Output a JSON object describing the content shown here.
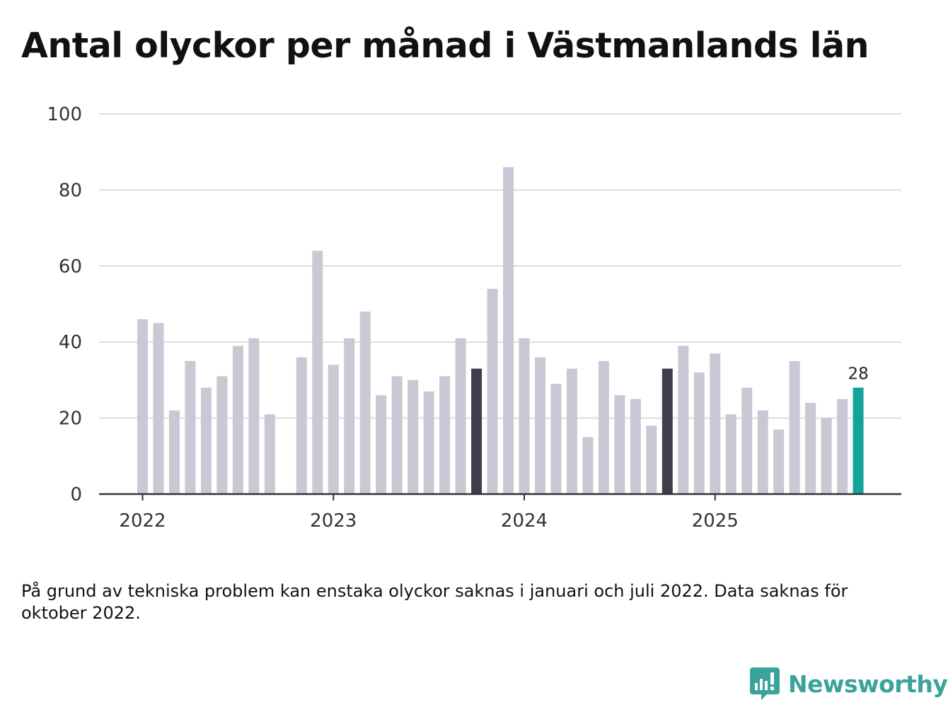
{
  "title": "Antal olyckor per månad i Västmanlands län",
  "footnote": "På grund av tekniska problem kan enstaka olyckor saknas i januari och juli 2022. Data saknas för oktober 2022.",
  "brand": {
    "name": "Newsworthy",
    "icon": "newsworthy-logo-icon"
  },
  "colors": {
    "default": "#c9c8d4",
    "highlight": "#3f3e4d",
    "latest": "#14a39a",
    "grid": "#dddddd",
    "axis": "#333333"
  },
  "chart_data": {
    "type": "bar",
    "title": "Antal olyckor per månad i Västmanlands län",
    "xlabel": "",
    "ylabel": "",
    "ylim": [
      0,
      100
    ],
    "yticks": [
      0,
      20,
      40,
      60,
      80,
      100
    ],
    "x_tick_labels": [
      {
        "label": "2022",
        "index": 0
      },
      {
        "label": "2023",
        "index": 12
      },
      {
        "label": "2024",
        "index": 24
      },
      {
        "label": "2025",
        "index": 36
      }
    ],
    "categories": [
      "2022-01",
      "2022-02",
      "2022-03",
      "2022-04",
      "2022-05",
      "2022-06",
      "2022-07",
      "2022-08",
      "2022-09",
      "2022-10",
      "2022-11",
      "2022-12",
      "2023-01",
      "2023-02",
      "2023-03",
      "2023-04",
      "2023-05",
      "2023-06",
      "2023-07",
      "2023-08",
      "2023-09",
      "2023-10",
      "2023-11",
      "2023-12",
      "2024-01",
      "2024-02",
      "2024-03",
      "2024-04",
      "2024-05",
      "2024-06",
      "2024-07",
      "2024-08",
      "2024-09",
      "2024-10",
      "2024-11",
      "2024-12",
      "2025-01",
      "2025-02",
      "2025-03",
      "2025-04",
      "2025-05",
      "2025-06",
      "2025-07",
      "2025-08",
      "2025-09",
      "2025-10"
    ],
    "values": [
      46,
      45,
      22,
      35,
      28,
      31,
      39,
      41,
      21,
      null,
      36,
      64,
      34,
      41,
      48,
      26,
      31,
      30,
      27,
      31,
      41,
      33,
      54,
      86,
      41,
      36,
      29,
      33,
      15,
      35,
      26,
      25,
      18,
      33,
      39,
      32,
      37,
      21,
      28,
      22,
      17,
      35,
      24,
      20,
      25,
      28
    ],
    "highlight_categories": [
      "2023-10",
      "2024-10"
    ],
    "latest_category": "2025-10",
    "data_labels": [
      {
        "category": "2025-10",
        "text": "28"
      }
    ],
    "grid": true
  }
}
